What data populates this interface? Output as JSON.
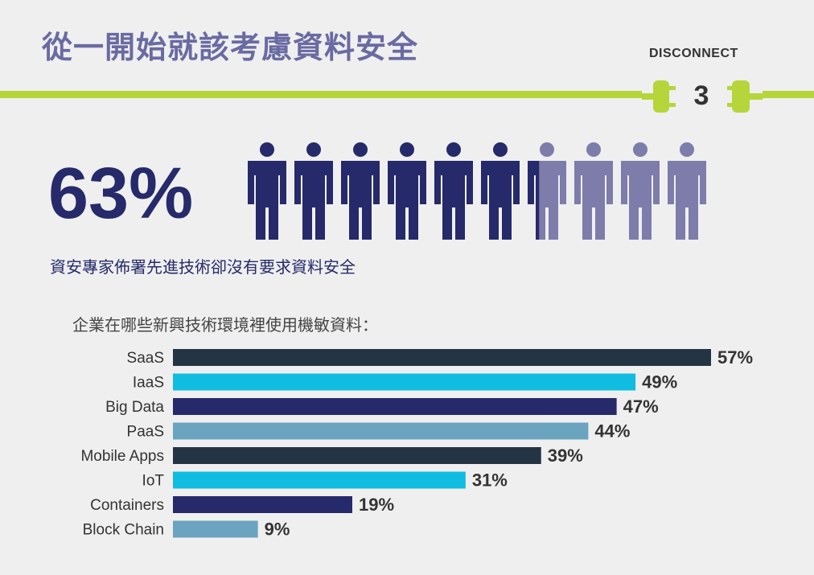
{
  "header": {
    "title": "從一開始就該考慮資料安全",
    "brand": "DISCONNECT",
    "step_number": "3",
    "accent_color": "#b6d53a"
  },
  "stat": {
    "percent_text": "63%",
    "value": 63,
    "people_total": 10,
    "people_highlighted": 6.3,
    "highlight_color": "#262a6a",
    "rest_color": "#7d7cab",
    "caption": "資安專家佈署先進技術卻沒有要求資料安全"
  },
  "chart_question": "企業在哪些新興技術環境裡使用機敏資料：",
  "chart_data": {
    "type": "bar",
    "orientation": "horizontal",
    "categories": [
      "SaaS",
      "IaaS",
      "Big Data",
      "PaaS",
      "Mobile Apps",
      "IoT",
      "Containers",
      "Block Chain"
    ],
    "values": [
      57,
      49,
      47,
      44,
      39,
      31,
      19,
      9
    ],
    "value_labels": [
      "57%",
      "49%",
      "47%",
      "44%",
      "39%",
      "31%",
      "19%",
      "9%"
    ],
    "colors": [
      "#253445",
      "#10bde0",
      "#272a6a",
      "#6aa4bf",
      "#253445",
      "#10bde0",
      "#272a6a",
      "#6aa4bf"
    ],
    "xlim": [
      0,
      57
    ],
    "grid": false,
    "legend": "none"
  }
}
